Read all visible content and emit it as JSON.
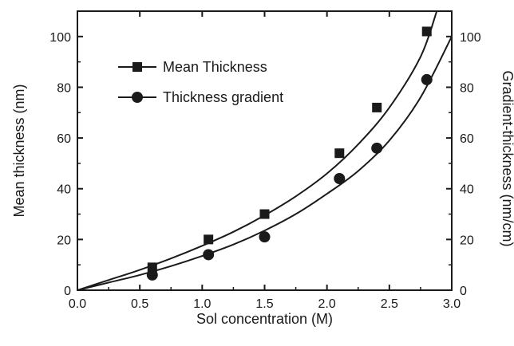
{
  "chart_data": {
    "type": "scatter",
    "xlabel": "Sol concentration (M)",
    "ylabel": "Mean thickness (nm)",
    "y2label": "Gradient-thickness (nm/cm)",
    "xlim": [
      0.0,
      3.0
    ],
    "ylim": [
      0,
      110
    ],
    "y2lim": [
      0,
      110
    ],
    "xticks": [
      "0.0",
      "0.5",
      "1.0",
      "1.5",
      "2.0",
      "2.5",
      "3.0"
    ],
    "yticks": [
      "0",
      "20",
      "40",
      "60",
      "80",
      "100"
    ],
    "y2ticks": [
      "0",
      "20",
      "40",
      "60",
      "80",
      "100"
    ],
    "grid": false,
    "legend": "upper-left",
    "series": [
      {
        "name": "Mean Thickness",
        "marker": "square",
        "axis": "left",
        "x": [
          0.6,
          1.05,
          1.5,
          2.1,
          2.4,
          2.8
        ],
        "y": [
          9,
          20,
          30,
          54,
          72,
          102
        ],
        "fit": [
          [
            0.0,
            0
          ],
          [
            0.25,
            4
          ],
          [
            0.5,
            8
          ],
          [
            0.75,
            12.5
          ],
          [
            1.0,
            17.5
          ],
          [
            1.25,
            23
          ],
          [
            1.5,
            29.5
          ],
          [
            1.75,
            37
          ],
          [
            2.0,
            46
          ],
          [
            2.25,
            57.5
          ],
          [
            2.5,
            72
          ],
          [
            2.75,
            92
          ],
          [
            2.88,
            110
          ]
        ]
      },
      {
        "name": "Thickness gradient",
        "marker": "circle",
        "axis": "right",
        "x": [
          0.6,
          1.05,
          1.5,
          2.1,
          2.4,
          2.8
        ],
        "y": [
          6,
          14,
          21,
          44,
          56,
          83
        ],
        "fit": [
          [
            0.0,
            0
          ],
          [
            0.25,
            3
          ],
          [
            0.5,
            6
          ],
          [
            0.75,
            9.5
          ],
          [
            1.0,
            13.5
          ],
          [
            1.25,
            18
          ],
          [
            1.5,
            23.5
          ],
          [
            1.75,
            30
          ],
          [
            2.0,
            38
          ],
          [
            2.25,
            47
          ],
          [
            2.5,
            59
          ],
          [
            2.75,
            76
          ],
          [
            3.0,
            100
          ]
        ]
      }
    ],
    "colors": {
      "ink": "#1a1a1a"
    }
  }
}
